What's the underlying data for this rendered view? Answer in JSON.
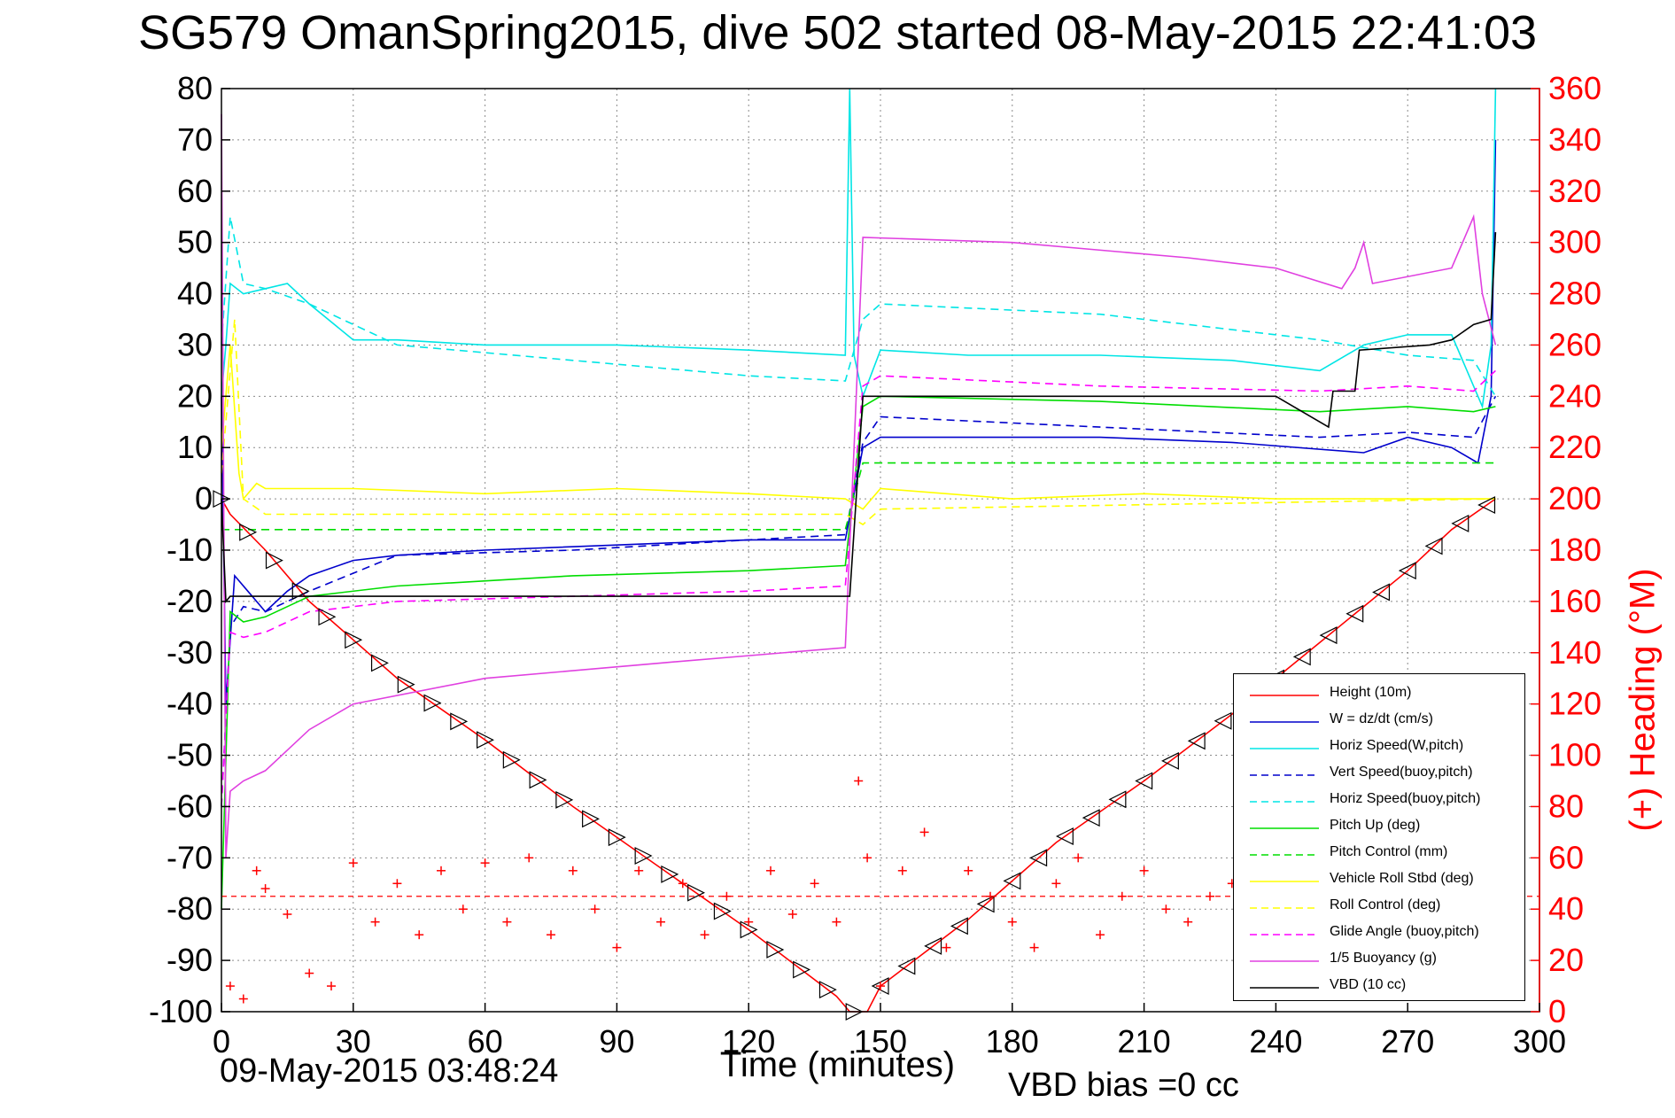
{
  "chart_data": {
    "type": "line",
    "title": "SG579 OmanSpring2015, dive 502 started 08-May-2015 22:41:03",
    "xlabel": "Time (minutes)",
    "ylabel_right": "(+) Heading (°M)",
    "xlim": [
      0,
      300
    ],
    "ylim": [
      -100,
      80
    ],
    "ylim_right": [
      0,
      360
    ],
    "x_ticks": [
      0,
      30,
      60,
      90,
      120,
      150,
      180,
      210,
      240,
      270,
      300
    ],
    "y_ticks": [
      80,
      70,
      60,
      50,
      40,
      30,
      20,
      10,
      0,
      -10,
      -20,
      -30,
      -40,
      -50,
      -60,
      -70,
      -80,
      -90,
      -100
    ],
    "y_ticks_right": [
      360,
      340,
      320,
      300,
      280,
      260,
      240,
      220,
      200,
      180,
      160,
      140,
      120,
      100,
      80,
      60,
      40,
      20,
      0
    ],
    "grid": true,
    "legend_position": "bottom-right",
    "footer_left": "09-May-2015 03:48:24",
    "footer_right": "VBD bias =0 cc",
    "colors": {
      "height": "#ff0000",
      "w": "#0000cc",
      "horiz_speed": "#00e5e5",
      "pitch": "#00dd00",
      "roll": "#ffff00",
      "glide": "#ff00ff",
      "buoyancy": "#e040e0",
      "vbd": "#000000",
      "heading": "#ff0000"
    },
    "series": [
      {
        "name": "Height (10m)",
        "style": "solid",
        "color": "#ff0000",
        "x": [
          0,
          2,
          10,
          20,
          40,
          60,
          80,
          100,
          120,
          140,
          143,
          147,
          150,
          170,
          190,
          210,
          230,
          250,
          270,
          280,
          290
        ],
        "y": [
          0,
          -3,
          -10,
          -20,
          -35,
          -47,
          -60,
          -72,
          -84,
          -97,
          -100,
          -100,
          -95,
          -82,
          -67,
          -55,
          -42,
          -28,
          -14,
          -6,
          0
        ]
      },
      {
        "name": "W = dz/dt (cm/s)",
        "style": "solid",
        "color": "#0000cc",
        "x": [
          0,
          1,
          3,
          6,
          10,
          15,
          20,
          30,
          40,
          60,
          90,
          120,
          142,
          146,
          150,
          170,
          200,
          230,
          260,
          270,
          280,
          286,
          289,
          290
        ],
        "y": [
          20,
          -40,
          -15,
          -18,
          -22,
          -18,
          -15,
          -12,
          -11,
          -10,
          -9,
          -8,
          -8,
          10,
          12,
          12,
          12,
          11,
          9,
          12,
          10,
          7,
          20,
          70
        ]
      },
      {
        "name": "Horiz Speed(W,pitch)",
        "style": "solid",
        "color": "#00e5e5",
        "x": [
          0,
          1,
          2,
          5,
          10,
          15,
          20,
          30,
          40,
          60,
          90,
          120,
          142,
          143,
          144,
          146,
          150,
          170,
          200,
          230,
          250,
          260,
          270,
          280,
          287,
          289,
          290
        ],
        "y": [
          20,
          30,
          42,
          40,
          41,
          42,
          38,
          31,
          31,
          30,
          30,
          29,
          28,
          80,
          28,
          20,
          29,
          28,
          28,
          27,
          25,
          30,
          32,
          32,
          18,
          30,
          80
        ]
      },
      {
        "name": "Vert Speed(buoy,pitch)",
        "style": "dashed",
        "color": "#0000cc",
        "x": [
          0,
          2,
          5,
          10,
          20,
          40,
          80,
          120,
          142,
          146,
          150,
          200,
          250,
          270,
          285,
          290
        ],
        "y": [
          -60,
          -25,
          -21,
          -22,
          -18,
          -11,
          -10,
          -8,
          -7,
          11,
          16,
          14,
          12,
          13,
          12,
          20
        ]
      },
      {
        "name": "Horiz Speed(buoy,pitch)",
        "style": "dashed",
        "color": "#00e5e5",
        "x": [
          0,
          2,
          5,
          10,
          20,
          40,
          80,
          120,
          142,
          146,
          150,
          200,
          250,
          270,
          285,
          290
        ],
        "y": [
          30,
          55,
          42,
          41,
          38,
          30,
          27,
          24,
          23,
          35,
          38,
          36,
          31,
          28,
          27,
          20
        ]
      },
      {
        "name": "Pitch Up (deg)",
        "style": "solid",
        "color": "#00dd00",
        "x": [
          0,
          2,
          5,
          10,
          20,
          40,
          80,
          120,
          142,
          146,
          150,
          200,
          250,
          270,
          285,
          290
        ],
        "y": [
          -80,
          -22,
          -24,
          -23,
          -19,
          -17,
          -15,
          -14,
          -13,
          18,
          20,
          19,
          17,
          18,
          17,
          18
        ]
      },
      {
        "name": "Pitch Control (mm)",
        "style": "dashed",
        "color": "#00dd00",
        "x": [
          0,
          5,
          142,
          146,
          290
        ],
        "y": [
          -6,
          -6,
          -6,
          7,
          7
        ]
      },
      {
        "name": "Vehicle Roll Stbd (deg)",
        "style": "solid",
        "color": "#ffff00",
        "x": [
          0,
          2,
          4,
          5,
          8,
          10,
          30,
          60,
          90,
          120,
          142,
          146,
          150,
          180,
          210,
          240,
          270,
          290
        ],
        "y": [
          10,
          30,
          5,
          0,
          3,
          2,
          2,
          1,
          2,
          1,
          0,
          -2,
          2,
          0,
          1,
          0,
          0,
          0
        ]
      },
      {
        "name": "Roll Control (deg)",
        "style": "dashed",
        "color": "#ffff00",
        "x": [
          0,
          3,
          5,
          10,
          142,
          146,
          150,
          290
        ],
        "y": [
          5,
          35,
          0,
          -3,
          -3,
          -5,
          -2,
          0
        ]
      },
      {
        "name": "Glide Angle (buoy,pitch)",
        "style": "dashed",
        "color": "#ff00ff",
        "x": [
          0,
          2,
          5,
          10,
          20,
          40,
          80,
          120,
          142,
          146,
          150,
          200,
          250,
          270,
          285,
          290
        ],
        "y": [
          -60,
          -26,
          -27,
          -26,
          -22,
          -20,
          -19,
          -18,
          -17,
          22,
          24,
          22,
          21,
          22,
          21,
          25
        ]
      },
      {
        "name": "1/5 Buoyancy (g)",
        "style": "solid",
        "color": "#e040e0",
        "x": [
          0,
          1,
          2,
          5,
          10,
          20,
          30,
          60,
          100,
          142,
          144,
          146,
          180,
          220,
          240,
          255,
          258,
          260,
          262,
          280,
          285,
          287,
          290
        ],
        "y": [
          75,
          -70,
          -57,
          -55,
          -53,
          -45,
          -40,
          -35,
          -32,
          -29,
          10,
          51,
          50,
          47,
          45,
          41,
          45,
          50,
          42,
          45,
          55,
          40,
          30
        ]
      },
      {
        "name": "VBD (10 cc)",
        "style": "solid",
        "color": "#000000",
        "x": [
          0,
          1,
          2,
          142,
          143,
          146,
          190,
          240,
          252,
          253,
          258,
          259,
          275,
          280,
          285,
          289,
          290
        ],
        "y": [
          0,
          -20,
          -19,
          -19,
          -19,
          20,
          20,
          20,
          14,
          21,
          21,
          29,
          30,
          31,
          34,
          35,
          52
        ]
      }
    ],
    "heading_points": {
      "name": "Heading",
      "axis": "right",
      "marker": "+",
      "color": "#ff0000",
      "x": [
        2,
        5,
        8,
        10,
        15,
        20,
        25,
        30,
        35,
        40,
        45,
        50,
        55,
        60,
        65,
        70,
        75,
        80,
        85,
        90,
        95,
        100,
        105,
        110,
        115,
        120,
        125,
        130,
        135,
        140,
        145,
        147,
        150,
        155,
        160,
        165,
        170,
        175,
        180,
        185,
        190,
        195,
        200,
        205,
        210,
        215,
        220,
        225,
        230,
        235,
        240,
        245,
        250,
        255,
        260,
        265,
        270,
        275,
        280,
        285,
        290
      ],
      "y": [
        10,
        5,
        55,
        48,
        38,
        15,
        10,
        58,
        35,
        50,
        30,
        55,
        40,
        58,
        35,
        60,
        30,
        55,
        40,
        25,
        55,
        35,
        50,
        30,
        45,
        35,
        55,
        38,
        50,
        35,
        90,
        60,
        10,
        55,
        70,
        25,
        55,
        45,
        35,
        25,
        50,
        60,
        30,
        45,
        55,
        40,
        35,
        45,
        50,
        40,
        55,
        35,
        45,
        30,
        50,
        40,
        45,
        35,
        50,
        40,
        45
      ]
    },
    "heading_reference": {
      "axis": "right",
      "y": 45,
      "style": "dashed",
      "color": "#ff0000"
    }
  }
}
